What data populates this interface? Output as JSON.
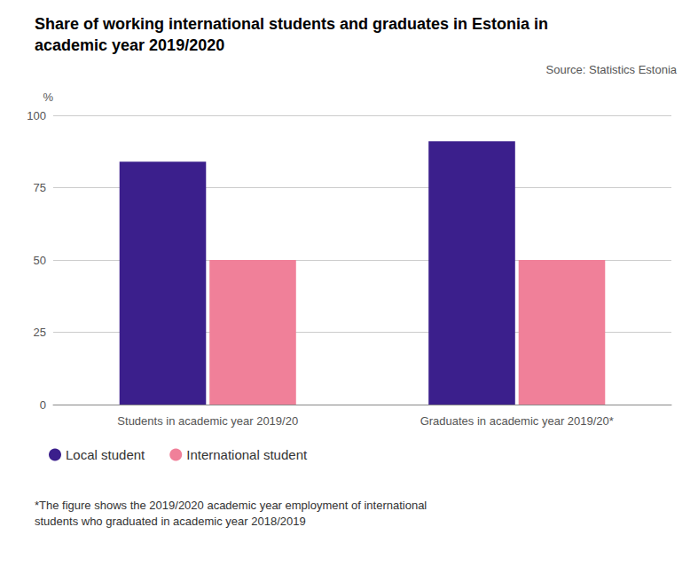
{
  "chart_data": {
    "type": "bar",
    "title": "Share of working international students and graduates in Estonia in\nacademic year 2019/2020",
    "subtitle": "Source: Statistics Estonia",
    "ylabel": "%",
    "categories": [
      "Students in academic year 2019/20",
      "Graduates in academic year 2019/20*"
    ],
    "series": [
      {
        "name": "Local student",
        "color": "#3b1f8c",
        "values": [
          84,
          91
        ]
      },
      {
        "name": "International student",
        "color": "#f08099",
        "values": [
          50,
          50
        ]
      }
    ],
    "ylim": [
      0,
      100
    ],
    "yticks": [
      0,
      25,
      50,
      75,
      100
    ],
    "grid": true,
    "legend": "lower left",
    "annotations": [
      "*The figure shows the 2019/2020 academic year employment of international\nstudents who graduated in academic year 2018/2019"
    ]
  }
}
